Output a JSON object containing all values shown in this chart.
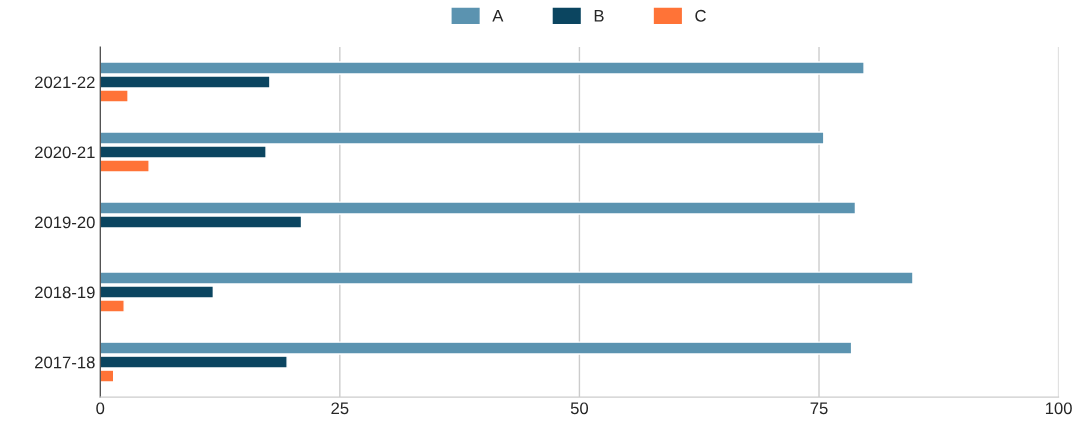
{
  "chart_data": {
    "type": "bar",
    "orientation": "horizontal",
    "categories": [
      "2021-22",
      "2020-21",
      "2019-20",
      "2018-19",
      "2017-18"
    ],
    "series": [
      {
        "name": "A",
        "color": "#5b93b0",
        "values": [
          79.7,
          75.5,
          78.8,
          84.8,
          78.4
        ]
      },
      {
        "name": "B",
        "color": "#0b4560",
        "values": [
          17.7,
          17.3,
          21.0,
          11.8,
          19.5
        ]
      },
      {
        "name": "C",
        "color": "#ff7337",
        "values": [
          2.9,
          5.1,
          null,
          2.5,
          1.4
        ]
      }
    ],
    "xlim": [
      0,
      100
    ],
    "xticks": [
      0,
      25,
      50,
      75,
      100
    ],
    "grid": "x",
    "legend": "top"
  }
}
